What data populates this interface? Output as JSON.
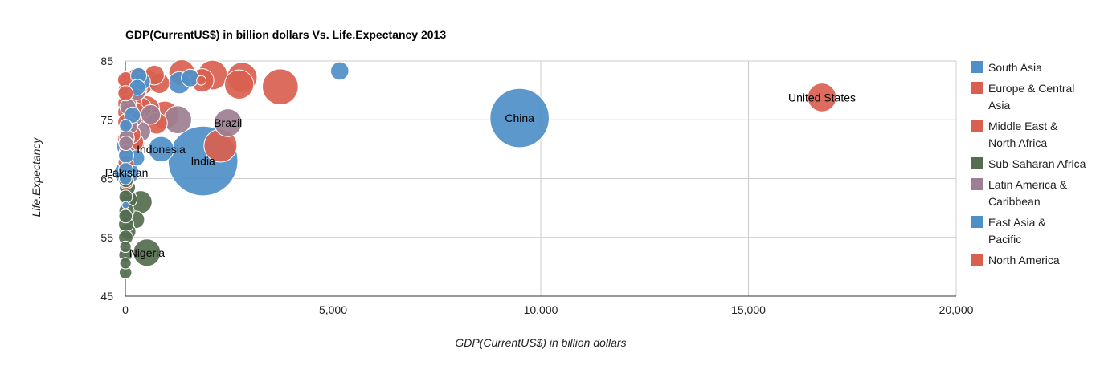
{
  "chart_data": {
    "type": "scatter",
    "title": "GDP(CurrentUS$) in billion dollars Vs. Life.Expectancy 2013",
    "xlabel": "GDP(CurrentUS$) in billion dollars",
    "ylabel": "Life.Expectancy",
    "xlim": [
      0,
      20000
    ],
    "ylim": [
      45,
      85
    ],
    "x_ticks": [
      "0",
      "5,000",
      "10,000",
      "15,000",
      "20,000"
    ],
    "y_ticks": [
      "45",
      "55",
      "65",
      "75",
      "85"
    ],
    "grid": true,
    "legend_position": "right",
    "series": [
      {
        "name": "South Asia",
        "color": "#4f8fc8",
        "points": [
          {
            "x": 1870,
            "y": 68.0,
            "size": 1877,
            "label": "India"
          },
          {
            "x": 30,
            "y": 66.0,
            "size": 232,
            "label": "Pakistan"
          },
          {
            "x": 25,
            "y": 70.5,
            "size": 150
          },
          {
            "x": 10,
            "y": 74.0,
            "size": 60
          },
          {
            "x": 5,
            "y": 60.5,
            "size": 20
          }
        ]
      },
      {
        "name": "Europe & Central Asia",
        "color": "#d9604f",
        "points": [
          {
            "x": 3730,
            "y": 80.6,
            "size": 500
          },
          {
            "x": 2810,
            "y": 82.2,
            "size": 350
          },
          {
            "x": 2100,
            "y": 82.6,
            "size": 340
          },
          {
            "x": 2740,
            "y": 81.0,
            "size": 330
          },
          {
            "x": 2290,
            "y": 70.6,
            "size": 420
          },
          {
            "x": 1360,
            "y": 83.0,
            "size": 260
          },
          {
            "x": 1850,
            "y": 81.7,
            "size": 210
          },
          {
            "x": 820,
            "y": 81.2,
            "size": 160
          },
          {
            "x": 950,
            "y": 75.8,
            "size": 300
          },
          {
            "x": 520,
            "y": 81.6,
            "size": 200
          },
          {
            "x": 500,
            "y": 76.8,
            "size": 280
          },
          {
            "x": 700,
            "y": 82.6,
            "size": 150
          },
          {
            "x": 400,
            "y": 81.0,
            "size": 170
          },
          {
            "x": 280,
            "y": 80.4,
            "size": 160
          },
          {
            "x": 230,
            "y": 76.3,
            "size": 150
          },
          {
            "x": 200,
            "y": 71.0,
            "size": 180
          },
          {
            "x": 150,
            "y": 78.3,
            "size": 160
          },
          {
            "x": 120,
            "y": 75.3,
            "size": 150
          },
          {
            "x": 80,
            "y": 81.3,
            "size": 150
          },
          {
            "x": 60,
            "y": 80.1,
            "size": 140
          },
          {
            "x": 40,
            "y": 77.8,
            "size": 130
          },
          {
            "x": 30,
            "y": 76.3,
            "size": 120
          },
          {
            "x": 20,
            "y": 74.6,
            "size": 110
          },
          {
            "x": 15,
            "y": 71.8,
            "size": 110
          },
          {
            "x": 10,
            "y": 67.8,
            "size": 90
          },
          {
            "x": 8,
            "y": 81.8,
            "size": 100
          },
          {
            "x": 5,
            "y": 79.5,
            "size": 90
          }
        ]
      },
      {
        "name": "Middle East & North Africa",
        "color": "#d9604f",
        "points": [
          {
            "x": 750,
            "y": 74.4,
            "size": 180
          },
          {
            "x": 380,
            "y": 77.0,
            "size": 170
          },
          {
            "x": 290,
            "y": 82.2,
            "size": 150
          },
          {
            "x": 210,
            "y": 71.2,
            "size": 140
          },
          {
            "x": 150,
            "y": 72.5,
            "size": 130
          },
          {
            "x": 100,
            "y": 76.4,
            "size": 120
          },
          {
            "x": 60,
            "y": 73.8,
            "size": 110
          },
          {
            "x": 40,
            "y": 69.4,
            "size": 100
          },
          {
            "x": 20,
            "y": 64.5,
            "size": 90
          }
        ]
      },
      {
        "name": "Sub-Saharan Africa",
        "color": "#546d4f",
        "points": [
          {
            "x": 520,
            "y": 52.4,
            "size": 290,
            "label": "Nigeria"
          },
          {
            "x": 370,
            "y": 61.0,
            "size": 200
          },
          {
            "x": 250,
            "y": 58.0,
            "size": 120
          },
          {
            "x": 80,
            "y": 61.5,
            "size": 110
          },
          {
            "x": 60,
            "y": 56.0,
            "size": 100
          },
          {
            "x": 50,
            "y": 63.5,
            "size": 100
          },
          {
            "x": 30,
            "y": 59.5,
            "size": 90
          },
          {
            "x": 20,
            "y": 57.2,
            "size": 90
          },
          {
            "x": 15,
            "y": 64.7,
            "size": 80
          },
          {
            "x": 10,
            "y": 55.0,
            "size": 80
          },
          {
            "x": 8,
            "y": 61.9,
            "size": 70
          },
          {
            "x": 6,
            "y": 58.6,
            "size": 70
          },
          {
            "x": 5,
            "y": 52.0,
            "size": 70
          },
          {
            "x": 4,
            "y": 49.0,
            "size": 60
          },
          {
            "x": 3,
            "y": 50.6,
            "size": 50
          },
          {
            "x": 2,
            "y": 53.4,
            "size": 50
          }
        ]
      },
      {
        "name": "Latin America & Caribbean",
        "color": "#9c7f93",
        "points": [
          {
            "x": 2470,
            "y": 74.5,
            "size": 300,
            "label": "Brazil"
          },
          {
            "x": 1260,
            "y": 75.0,
            "size": 300
          },
          {
            "x": 610,
            "y": 75.9,
            "size": 150
          },
          {
            "x": 370,
            "y": 73.0,
            "size": 150
          },
          {
            "x": 280,
            "y": 79.8,
            "size": 120
          },
          {
            "x": 180,
            "y": 75.2,
            "size": 120
          },
          {
            "x": 100,
            "y": 74.0,
            "size": 110
          },
          {
            "x": 60,
            "y": 77.2,
            "size": 100
          },
          {
            "x": 30,
            "y": 72.0,
            "size": 90
          },
          {
            "x": 15,
            "y": 71.0,
            "size": 80
          }
        ]
      },
      {
        "name": "East Asia & Pacific",
        "color": "#4f8fc8",
        "points": [
          {
            "x": 9490,
            "y": 75.3,
            "size": 1357,
            "label": "China"
          },
          {
            "x": 5160,
            "y": 83.3,
            "size": 127
          },
          {
            "x": 1300,
            "y": 81.3,
            "size": 190
          },
          {
            "x": 1560,
            "y": 82.1,
            "size": 120
          },
          {
            "x": 860,
            "y": 70.0,
            "size": 250,
            "label": "Indonesia"
          },
          {
            "x": 400,
            "y": 81.5,
            "size": 110
          },
          {
            "x": 320,
            "y": 82.5,
            "size": 100
          },
          {
            "x": 290,
            "y": 80.5,
            "size": 100
          },
          {
            "x": 270,
            "y": 68.5,
            "size": 100
          },
          {
            "x": 170,
            "y": 75.8,
            "size": 100
          },
          {
            "x": 20,
            "y": 68.9,
            "size": 90
          },
          {
            "x": 10,
            "y": 66.5,
            "size": 80
          },
          {
            "x": 5,
            "y": 65.0,
            "size": 60
          }
        ]
      },
      {
        "name": "North America",
        "color": "#d9604f",
        "points": [
          {
            "x": 16770,
            "y": 78.8,
            "size": 316,
            "label": "United States"
          },
          {
            "x": 1830,
            "y": 81.7,
            "size": 35
          }
        ]
      }
    ]
  }
}
